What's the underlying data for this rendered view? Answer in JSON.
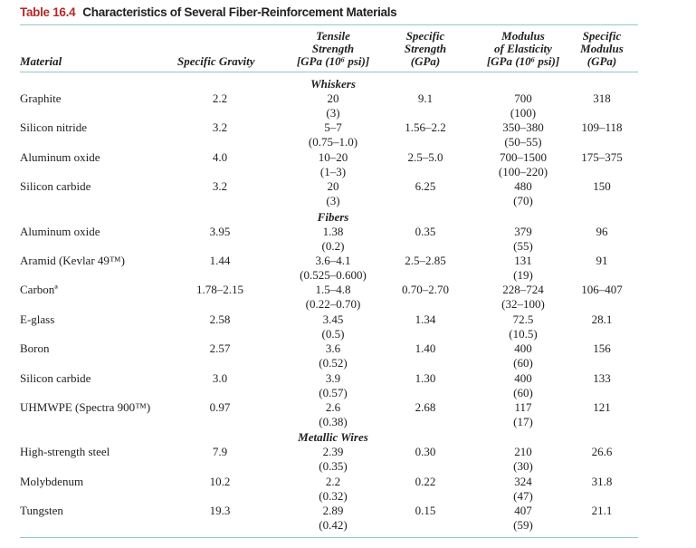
{
  "title": {
    "number": "Table 16.4",
    "text": "Characteristics of Several Fiber-Reinforcement Materials"
  },
  "headers": {
    "material": "Material",
    "specific_gravity": "Specific Gravity",
    "tensile_strength": [
      "Tensile",
      "Strength",
      "[GPa (10⁶ psi)]"
    ],
    "specific_strength": [
      "Specific",
      "Strength",
      "(GPa)"
    ],
    "modulus": [
      "Modulus",
      "of Elasticity",
      "[GPa (10⁶ psi)]"
    ],
    "specific_modulus": [
      "Specific",
      "Modulus",
      "(GPa)"
    ]
  },
  "sections": [
    {
      "name": "Whiskers",
      "rows": [
        {
          "material": "Graphite",
          "sg": "2.2",
          "ts": "20",
          "ts_psi": "(3)",
          "ss": "9.1",
          "me": "700",
          "me_psi": "(100)",
          "sm": "318"
        },
        {
          "material": "Silicon nitride",
          "sg": "3.2",
          "ts": "5–7",
          "ts_psi": "(0.75–1.0)",
          "ss": "1.56–2.2",
          "me": "350–380",
          "me_psi": "(50–55)",
          "sm": "109–118"
        },
        {
          "material": "Aluminum oxide",
          "sg": "4.0",
          "ts": "10–20",
          "ts_psi": "(1–3)",
          "ss": "2.5–5.0",
          "me": "700–1500",
          "me_psi": "(100–220)",
          "sm": "175–375"
        },
        {
          "material": "Silicon carbide",
          "sg": "3.2",
          "ts": "20",
          "ts_psi": "(3)",
          "ss": "6.25",
          "me": "480",
          "me_psi": "(70)",
          "sm": "150"
        }
      ]
    },
    {
      "name": "Fibers",
      "rows": [
        {
          "material": "Aluminum oxide",
          "sg": "3.95",
          "ts": "1.38",
          "ts_psi": "(0.2)",
          "ss": "0.35",
          "me": "379",
          "me_psi": "(55)",
          "sm": "96"
        },
        {
          "material": "Aramid (Kevlar 49™)",
          "sg": "1.44",
          "ts": "3.6–4.1",
          "ts_psi": "(0.525–0.600)",
          "ss": "2.5–2.85",
          "me": "131",
          "me_psi": "(19)",
          "sm": "91"
        },
        {
          "material": "Carbonª",
          "sg": "1.78–2.15",
          "ts": "1.5–4.8",
          "ts_psi": "(0.22–0.70)",
          "ss": "0.70–2.70",
          "me": "228–724",
          "me_psi": "(32–100)",
          "sm": "106–407"
        },
        {
          "material": "E-glass",
          "sg": "2.58",
          "ts": "3.45",
          "ts_psi": "(0.5)",
          "ss": "1.34",
          "me": "72.5",
          "me_psi": "(10.5)",
          "sm": "28.1"
        },
        {
          "material": "Boron",
          "sg": "2.57",
          "ts": "3.6",
          "ts_psi": "(0.52)",
          "ss": "1.40",
          "me": "400",
          "me_psi": "(60)",
          "sm": "156"
        },
        {
          "material": "Silicon carbide",
          "sg": "3.0",
          "ts": "3.9",
          "ts_psi": "(0.57)",
          "ss": "1.30",
          "me": "400",
          "me_psi": "(60)",
          "sm": "133"
        },
        {
          "material": "UHMWPE (Spectra 900™)",
          "sg": "0.97",
          "ts": "2.6",
          "ts_psi": "(0.38)",
          "ss": "2.68",
          "me": "117",
          "me_psi": "(17)",
          "sm": "121"
        }
      ]
    },
    {
      "name": "Metallic Wires",
      "rows": [
        {
          "material": "High-strength steel",
          "sg": "7.9",
          "ts": "2.39",
          "ts_psi": "(0.35)",
          "ss": "0.30",
          "me": "210",
          "me_psi": "(30)",
          "sm": "26.6"
        },
        {
          "material": "Molybdenum",
          "sg": "10.2",
          "ts": "2.2",
          "ts_psi": "(0.32)",
          "ss": "0.22",
          "me": "324",
          "me_psi": "(47)",
          "sm": "31.8"
        },
        {
          "material": "Tungsten",
          "sg": "19.3",
          "ts": "2.89",
          "ts_psi": "(0.42)",
          "ss": "0.15",
          "me": "407",
          "me_psi": "(59)",
          "sm": "21.1"
        }
      ]
    }
  ],
  "colors": {
    "title_number": "#b22a2a",
    "rules": "#8fc9c4"
  }
}
